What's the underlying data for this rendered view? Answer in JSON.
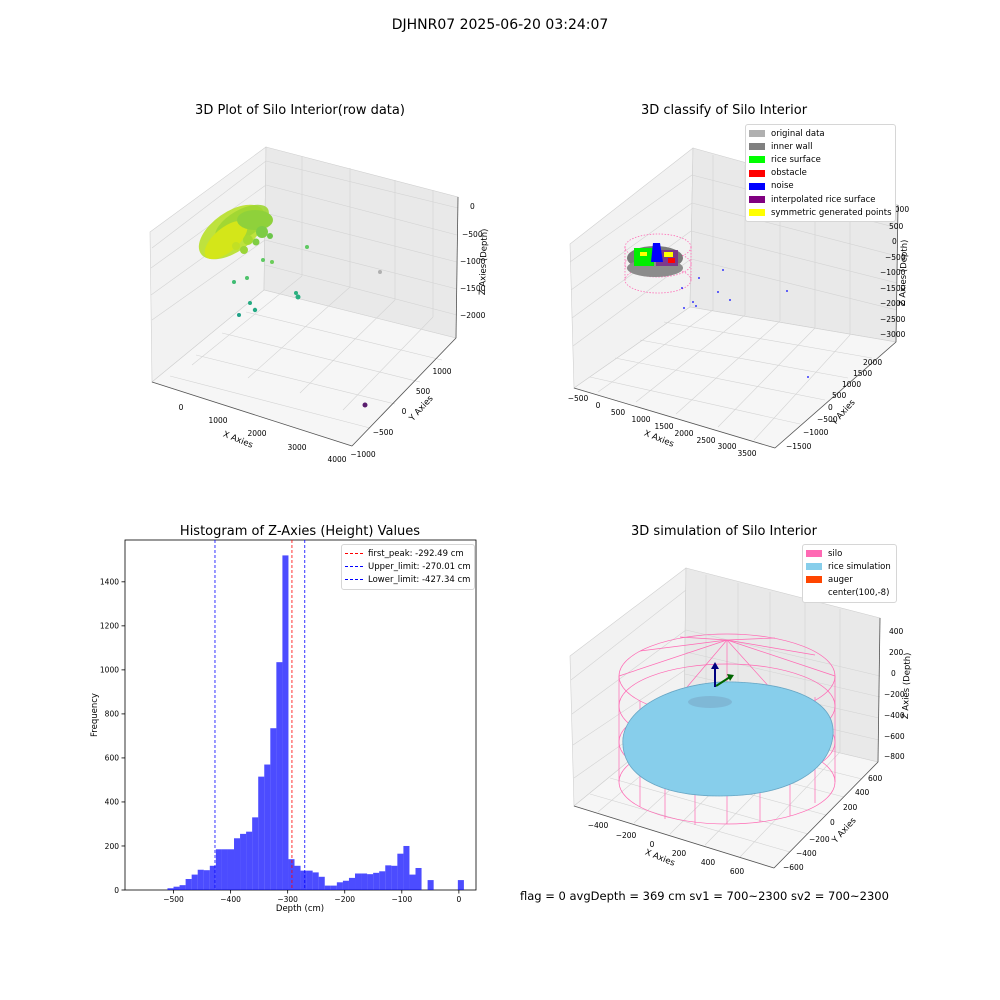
{
  "figure_title": "DJHNR07 2025-06-20 03:24:07",
  "info_line": "flag = 0     avgDepth = 369 cm  sv1 = 700~2300  sv2 = 700~2300",
  "panels": {
    "raw": {
      "title": "3D Plot of Silo Interior(row data)",
      "xlabel": "X Axies",
      "ylabel": "Y Axies",
      "zlabel": "Z Axies (Depth)",
      "xticks": [
        "0",
        "1000",
        "2000",
        "3000",
        "4000"
      ],
      "yticks": [
        "−1000",
        "−500",
        "0",
        "500",
        "1000"
      ],
      "zticks": [
        "0",
        "−500",
        "−1000",
        "−1500",
        "−2000"
      ]
    },
    "classify": {
      "title": "3D classify of Silo Interior",
      "xlabel": "X Axies",
      "ylabel": "Y Axies",
      "zlabel": "Z Axies (Depth)",
      "xticks": [
        "−500",
        "0",
        "500",
        "1000",
        "1500",
        "2000",
        "2500",
        "3000",
        "3500"
      ],
      "yticks": [
        "−1500",
        "−1000",
        "−500",
        "0",
        "500",
        "1000",
        "1500",
        "2000"
      ],
      "zticks": [
        "1000",
        "500",
        "0",
        "−500",
        "−1000",
        "−1500",
        "−2000",
        "−2500",
        "−3000"
      ],
      "legend": [
        {
          "label": "original data",
          "color": "#b0b0b0"
        },
        {
          "label": "inner wall",
          "color": "#808080"
        },
        {
          "label": "rice surface",
          "color": "#00ff00"
        },
        {
          "label": "obstacle",
          "color": "#ff0000"
        },
        {
          "label": "noise",
          "color": "#0000ff"
        },
        {
          "label": "interpolated rice surface",
          "color": "#800080"
        },
        {
          "label": "symmetric generated points",
          "color": "#ffff00"
        }
      ]
    },
    "simulation": {
      "title": "3D simulation of Silo Interior",
      "xlabel": "X Axies",
      "ylabel": "Y Axies",
      "zlabel": "Z Axies (Depth)",
      "xticks": [
        "−400",
        "−200",
        "0",
        "200",
        "400",
        "600"
      ],
      "yticks": [
        "−600",
        "−400",
        "−200",
        "0",
        "200",
        "400",
        "600"
      ],
      "zticks": [
        "400",
        "200",
        "0",
        "−200",
        "−400",
        "−600",
        "−800"
      ],
      "legend": [
        {
          "label": "silo",
          "color": "#ff69b4"
        },
        {
          "label": "rice simulation",
          "color": "#87ceeb"
        },
        {
          "label": "auger",
          "color": "#ff4500"
        },
        {
          "label": "center(100,-8)",
          "color": "#ffffff"
        }
      ]
    }
  },
  "chart_data": {
    "type": "bar",
    "title": "Histogram of Z-Axies (Height) Values",
    "xlabel": "Depth (cm)",
    "ylabel": "Frequency",
    "xlim": [
      -585,
      30
    ],
    "ylim": [
      0,
      1590
    ],
    "xticks": [
      -500,
      -400,
      -300,
      -200,
      -100,
      0
    ],
    "xtick_labels": [
      "−500",
      "−400",
      "−300",
      "−200",
      "−100",
      "0"
    ],
    "yticks": [
      0,
      200,
      400,
      600,
      800,
      1000,
      1200,
      1400
    ],
    "yticks_labels": [
      "0",
      "200",
      "400",
      "600",
      "800",
      "1000",
      "1200",
      "1400"
    ],
    "bar_color": "#0000ff",
    "bin_width": 10.6,
    "bin_starts": [
      -510.6,
      -500,
      -489.4,
      -478.8,
      -468.2,
      -457.6,
      -447,
      -436.4,
      -425.8,
      -415.2,
      -404.6,
      -394,
      -383.4,
      -372.8,
      -362.2,
      -351.6,
      -341,
      -330.4,
      -319.8,
      -309.2,
      -298.6,
      -288,
      -277.4,
      -266.8,
      -256.2,
      -245.6,
      -235,
      -224.4,
      -213.8,
      -203.2,
      -192.6,
      -182,
      -171.4,
      -160.8,
      -150.2,
      -139.6,
      -129,
      -118.4,
      -107.8,
      -97.2,
      -86.6,
      -76,
      -65.4,
      -54.8,
      -44.2,
      -33.6,
      -23,
      -12.4,
      -1.8
    ],
    "counts": [
      8,
      15,
      22,
      50,
      70,
      92,
      90,
      110,
      185,
      185,
      185,
      235,
      255,
      265,
      330,
      515,
      570,
      735,
      1035,
      1520,
      140,
      110,
      88,
      88,
      80,
      60,
      20,
      20,
      35,
      42,
      55,
      75,
      75,
      72,
      78,
      85,
      112,
      110,
      165,
      200,
      70,
      100,
      0,
      45,
      0,
      0,
      0,
      0,
      45
    ],
    "lines": [
      {
        "label": "first_peak: -292.49 cm",
        "x": -292.49,
        "color": "#ff0000"
      },
      {
        "label": "Upper_limit: -270.01 cm",
        "x": -270.01,
        "color": "#0000ff"
      },
      {
        "label": "Lower_limit: -427.34 cm",
        "x": -427.34,
        "color": "#0000ff"
      }
    ]
  }
}
